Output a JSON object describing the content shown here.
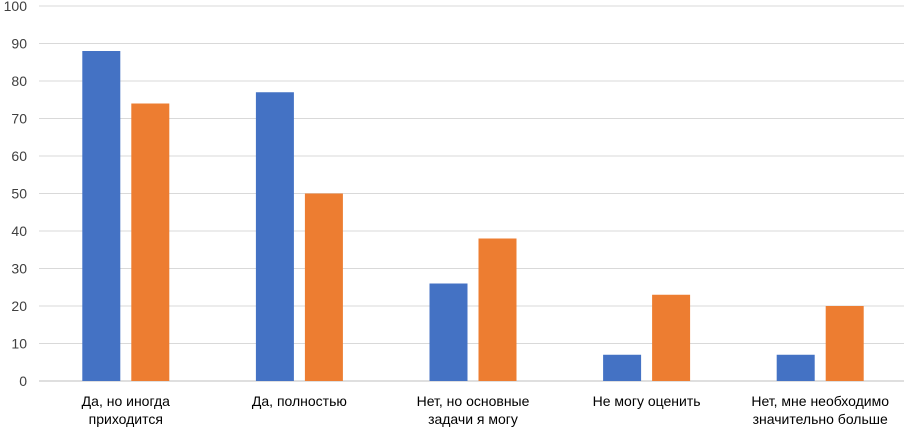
{
  "chart_data": {
    "type": "bar",
    "title": "",
    "xlabel": "",
    "ylabel": "",
    "ylim": [
      0,
      100
    ],
    "yticks": [
      0,
      10,
      20,
      30,
      40,
      50,
      60,
      70,
      80,
      90,
      100
    ],
    "grid": true,
    "legend": "none",
    "categories": [
      [
        "Да, но иногда",
        "приходится"
      ],
      [
        "Да, полностью"
      ],
      [
        "Нет, но основные",
        "задачи я могу"
      ],
      [
        "Не могу оценить"
      ],
      [
        "Нет, мне необходимо",
        "значительно больше"
      ]
    ],
    "series": [
      {
        "color": "#4472C4",
        "values": [
          88,
          77,
          26,
          7,
          7
        ]
      },
      {
        "color": "#ED7D31",
        "values": [
          74,
          50,
          38,
          23,
          20
        ]
      }
    ],
    "colors": {
      "grid": "#D9D9D9",
      "axis": "#BFBFBF",
      "tick_text": "#404040",
      "category_text": "#000000"
    }
  }
}
